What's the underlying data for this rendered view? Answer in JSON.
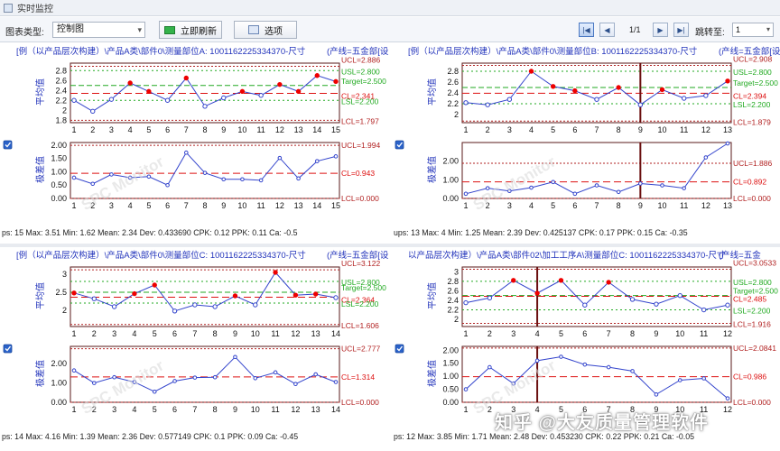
{
  "window": {
    "title": "实时监控"
  },
  "toolbar": {
    "chart_type_label": "图表类型:",
    "chart_type_value": "控制图",
    "refresh_label": "立即刷新",
    "options_label": "选项",
    "page_indicator": "1/1",
    "jump_label": "跳转至:",
    "jump_value": "1"
  },
  "watermark": "知乎 @大友质量管理软件",
  "colors": {
    "ucl": "#b22222",
    "cl": "#dd1111",
    "spec": "#22aa22",
    "line": "#3344cc",
    "point": "#3344cc",
    "ooc": "#ee0000"
  },
  "chart_data": [
    {
      "type": "line",
      "title": "[例（以产品层次构建）\\产品A类\\部件0\\测量部位A: 1001162225334370-尺寸",
      "title_right": "(产线=五金部[设",
      "xbar": {
        "ylabel": "平均值",
        "x": [
          1,
          2,
          3,
          4,
          5,
          6,
          7,
          8,
          9,
          10,
          11,
          12,
          13,
          14,
          15
        ],
        "values": [
          2.2,
          1.98,
          2.22,
          2.55,
          2.38,
          2.2,
          2.65,
          2.08,
          2.25,
          2.38,
          2.3,
          2.52,
          2.38,
          2.7,
          2.58
        ],
        "ylim": [
          1.75,
          2.95
        ],
        "yticks": [
          1.8,
          2.0,
          2.2,
          2.4,
          2.6,
          2.8
        ],
        "limits": {
          "UCL": 2.886,
          "USL": 2.8,
          "Target": 2.5,
          "CL": 2.341,
          "LSL": 2.2,
          "LCL": 1.797
        },
        "labels": {
          "UCL": "UCL=2.886",
          "USL": "USL=2.800",
          "Target": "Target=2.500",
          "CL": "CL=2.341",
          "LSL": "LSL=2.200",
          "LCL": "LCL=1.797"
        }
      },
      "range": {
        "ylabel": "极差值",
        "x": [
          1,
          2,
          3,
          4,
          5,
          6,
          7,
          8,
          9,
          10,
          11,
          12,
          13,
          14,
          15
        ],
        "values": [
          0.78,
          0.55,
          0.9,
          0.78,
          0.82,
          0.5,
          1.72,
          0.96,
          0.72,
          0.72,
          0.68,
          1.52,
          0.75,
          1.4,
          1.58
        ],
        "ylim": [
          0,
          2.1
        ],
        "yticks": [
          "0.00",
          "0.50",
          "1.00",
          "1.50",
          "2.00"
        ],
        "limits": {
          "UCL": 1.994,
          "CL": 0.943,
          "LCL": 0.0
        },
        "labels": {
          "UCL": "UCL=1.994",
          "CL": "CL=0.943",
          "LCL": "LCL=0.000"
        }
      },
      "stats": "ps: 15   Max: 3.51   Min: 1.62   Mean: 2.34   Dev: 0.433690   CPK: 0.12   PPK: 0.11   Ca: -0.5",
      "cursor_x": null
    },
    {
      "type": "line",
      "title": "[例（以产品层次构建）\\产品A类\\部件0\\测量部位B: 1001162225334370-尺寸",
      "title_right": "(产线=五金部[设",
      "xbar": {
        "ylabel": "平均值",
        "x": [
          1,
          2,
          3,
          4,
          5,
          6,
          7,
          8,
          9,
          10,
          11,
          12,
          13
        ],
        "values": [
          2.22,
          2.18,
          2.28,
          2.8,
          2.52,
          2.44,
          2.28,
          2.5,
          2.18,
          2.46,
          2.3,
          2.35,
          2.62
        ],
        "ylim": [
          1.85,
          2.95
        ],
        "yticks": [
          2.0,
          2.2,
          2.4,
          2.6,
          2.8
        ],
        "limits": {
          "UCL": 2.908,
          "USL": 2.8,
          "Target": 2.5,
          "CL": 2.394,
          "LSL": 2.2,
          "LCL": 1.879
        },
        "labels": {
          "UCL": "UCL=2.908",
          "USL": "USL=2.800",
          "Target": "Target=2.500",
          "CL": "CL=2.394",
          "LSL": "LSL=2.200",
          "LCL": "LCL=1.879"
        }
      },
      "range": {
        "ylabel": "极差值",
        "x": [
          1,
          2,
          3,
          4,
          5,
          6,
          7,
          8,
          9,
          10,
          11,
          12,
          13
        ],
        "values": [
          0.25,
          0.55,
          0.4,
          0.58,
          0.88,
          0.25,
          0.7,
          0.35,
          0.8,
          0.7,
          0.55,
          2.2,
          2.95
        ],
        "ylim": [
          0,
          3.0
        ],
        "yticks": [
          "0.00",
          "1.00",
          "2.00"
        ],
        "limits": {
          "UCL": 1.886,
          "CL": 0.892,
          "LCL": 0.0
        },
        "labels": {
          "UCL": "UCL=1.886",
          "CL": "CL=0.892",
          "LCL": "LCL=0.000"
        }
      },
      "stats": "ups: 13   Max: 4   Min: 1.25   Mean: 2.39   Dev: 0.425137   CPK: 0.17   PPK: 0.15   Ca: -0.35",
      "cursor_x": 9
    },
    {
      "type": "line",
      "title": "[例（以产品层次构建）\\产品A类\\部件0\\测量部位C: 1001162225334370-尺寸",
      "title_right": "(产线=五金部[设",
      "xbar": {
        "ylabel": "平均值",
        "x": [
          1,
          2,
          3,
          4,
          5,
          6,
          7,
          8,
          9,
          10,
          11,
          12,
          13,
          14
        ],
        "values": [
          2.48,
          2.32,
          2.1,
          2.46,
          2.7,
          1.98,
          2.15,
          2.1,
          2.4,
          2.15,
          3.05,
          2.42,
          2.45,
          2.35
        ],
        "ylim": [
          1.55,
          3.2
        ],
        "yticks": [
          2,
          2.5,
          3
        ],
        "limits": {
          "UCL": 3.122,
          "USL": 2.8,
          "Target": 2.5,
          "CL": 2.364,
          "LSL": 2.2,
          "LCL": 1.606
        },
        "labels": {
          "UCL": "UCL=3.122",
          "USL": "USL=2.800",
          "Target": "Target=2.500",
          "CL": "CL=2.364",
          "LSL": "LSL=2.200",
          "LCL": "LCL=1.606"
        }
      },
      "range": {
        "ylabel": "极差值",
        "x": [
          1,
          2,
          3,
          4,
          5,
          6,
          7,
          8,
          9,
          10,
          11,
          12,
          13,
          14
        ],
        "values": [
          1.65,
          1.0,
          1.3,
          1.05,
          0.55,
          1.1,
          1.28,
          1.3,
          2.35,
          1.25,
          1.55,
          0.95,
          1.45,
          1.05
        ],
        "ylim": [
          0,
          2.9
        ],
        "yticks": [
          "0.00",
          "1.00",
          "2.00"
        ],
        "limits": {
          "UCL": 2.777,
          "CL": 1.314,
          "LCL": 0.0
        },
        "labels": {
          "UCL": "UCL=2.777",
          "CL": "CL=1.314",
          "LCL": "LCL=0.000"
        }
      },
      "stats": "ps: 14   Max: 4.16   Min: 1.39   Mean: 2.36   Dev: 0.577149   CPK: 0.1   PPK: 0.09   Ca: -0.45",
      "cursor_x": null
    },
    {
      "type": "line",
      "title": "以产品层次构建）\\产品A类\\部件02\\加工工序A\\测量部位C: 1001162225334370-尺寸",
      "title_right": "(产线=五金",
      "xbar": {
        "ylabel": "平均值",
        "x": [
          1,
          2,
          3,
          4,
          5,
          6,
          7,
          8,
          9,
          10,
          11,
          12
        ],
        "values": [
          2.35,
          2.45,
          2.82,
          2.55,
          2.82,
          2.3,
          2.78,
          2.42,
          2.32,
          2.5,
          2.2,
          2.3
        ],
        "ylim": [
          1.85,
          3.1
        ],
        "yticks": [
          2.0,
          2.2,
          2.4,
          2.6,
          2.8,
          3.0
        ],
        "limits": {
          "UCL": 3.0533,
          "USL": 2.8,
          "Target": 2.5,
          "CL": 2.485,
          "LSL": 2.2,
          "LCL": 1.916
        },
        "labels": {
          "UCL": "UCL=3.0533",
          "USL": "USL=2.800",
          "Target": "Target=2.500",
          "CL": "CL=2.485",
          "LSL": "LSL=2.200",
          "LCL": "LCL=1.916"
        }
      },
      "range": {
        "ylabel": "极差值",
        "x": [
          1,
          2,
          3,
          4,
          5,
          6,
          7,
          8,
          9,
          10,
          11,
          12
        ],
        "values": [
          0.5,
          1.35,
          0.72,
          1.6,
          1.75,
          1.45,
          1.35,
          1.2,
          0.3,
          0.85,
          0.92,
          0.15
        ],
        "ylim": [
          0,
          2.15
        ],
        "yticks": [
          "0.00",
          "0.50",
          "1.00",
          "1.50",
          "2.00"
        ],
        "limits": {
          "UCL": 2.0841,
          "CL": 0.986,
          "LCL": 0.0
        },
        "labels": {
          "UCL": "UCL=2.0841",
          "CL": "CL=0.986",
          "LCL": "LCL=0.000"
        }
      },
      "stats": "ps: 12   Max: 3.85   Min: 1.71   Mean: 2.48   Dev: 0.453230   CPK: 0.22   PPK: 0.21   Ca: -0.05",
      "cursor_x": 4
    }
  ]
}
